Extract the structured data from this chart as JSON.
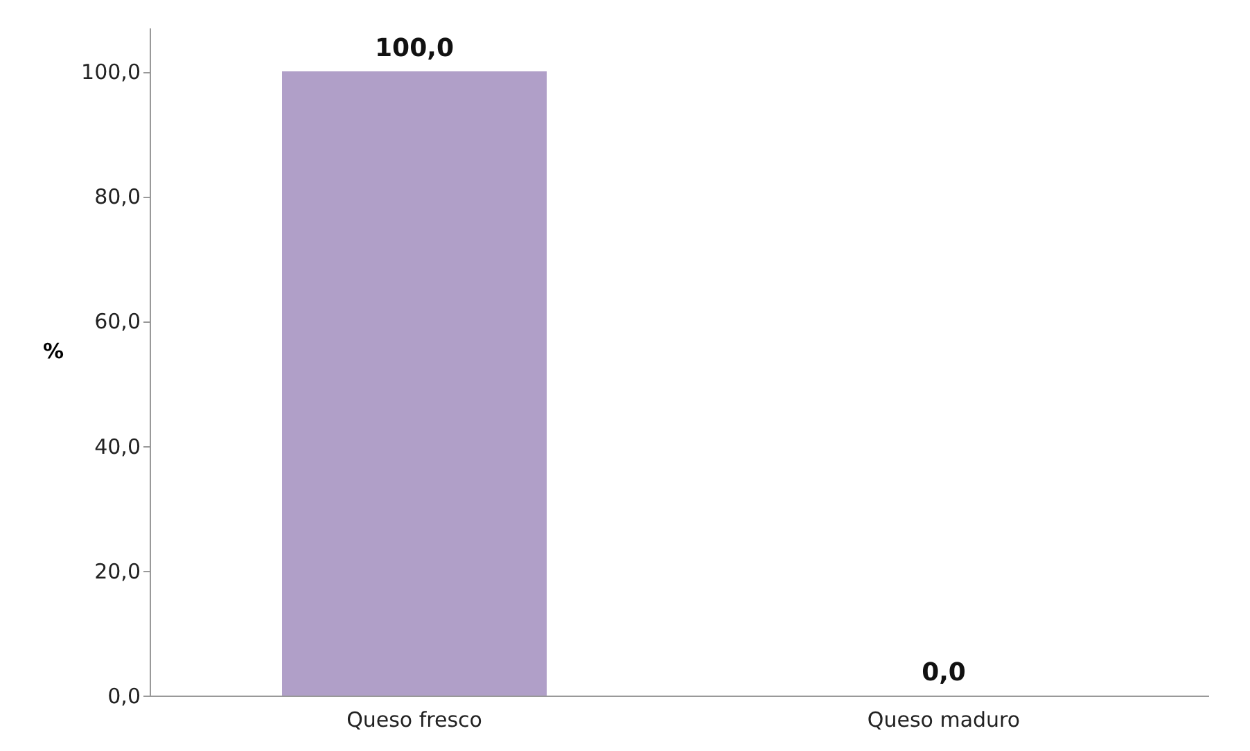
{
  "chart_data": {
    "type": "bar",
    "categories": [
      "Queso fresco",
      "Queso maduro"
    ],
    "values": [
      100.0,
      0.0
    ],
    "color": "#b09fc8",
    "value_labels": [
      "100,0",
      "0,0"
    ],
    "ylabel": "%",
    "ylim": [
      0,
      107
    ],
    "yticks": [
      {
        "value": 0,
        "label": "0,0"
      },
      {
        "value": 20,
        "label": "20,0"
      },
      {
        "value": 40,
        "label": "40,0"
      },
      {
        "value": 60,
        "label": "60,0"
      },
      {
        "value": 80,
        "label": "80,0"
      },
      {
        "value": 100,
        "label": "100,0"
      }
    ],
    "grid": false
  }
}
